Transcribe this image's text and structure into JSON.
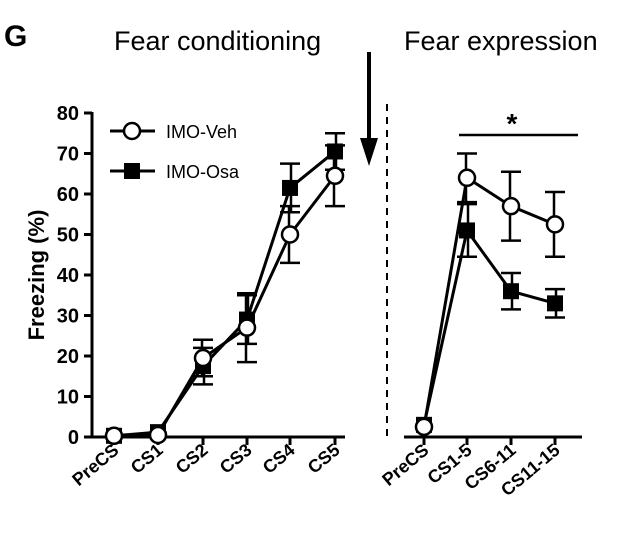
{
  "panel_letter": "G",
  "phase_titles": {
    "conditioning": "Fear conditioning",
    "expression": "Fear expression"
  },
  "chart_data": {
    "type": "line",
    "ylabel": "Freezing (%)",
    "ylim": [
      0,
      80
    ],
    "yticks": [
      "0",
      "10",
      "20",
      "30",
      "40",
      "50",
      "60",
      "70",
      "80"
    ],
    "categories_conditioning": [
      "PreCS",
      "CS1",
      "CS2",
      "CS3",
      "CS4",
      "CS5"
    ],
    "categories_expression": [
      "PreCS",
      "CS1-5",
      "CS6-11",
      "CS11-15"
    ],
    "series": [
      {
        "name": "IMO-Veh",
        "marker": "open-circle",
        "conditioning": {
          "values": [
            0.3,
            0.5,
            19.5,
            27,
            50,
            64.5
          ],
          "errors": [
            0,
            0,
            4.5,
            8.5,
            7,
            7.5
          ]
        },
        "expression": {
          "values": [
            2.5,
            64,
            57,
            52.5
          ],
          "errors": [
            0,
            6,
            8.5,
            8
          ]
        }
      },
      {
        "name": "IMO-Osa",
        "marker": "filled-square",
        "conditioning": {
          "values": [
            0.3,
            1.2,
            17.5,
            29,
            61.5,
            70.5
          ],
          "errors": [
            0,
            0,
            4.5,
            6,
            6,
            4.5
          ]
        },
        "expression": {
          "values": [
            3,
            51,
            36,
            33
          ],
          "errors": [
            0,
            6.5,
            4.5,
            3.5
          ]
        }
      }
    ],
    "annotations": {
      "significance": "*"
    }
  }
}
